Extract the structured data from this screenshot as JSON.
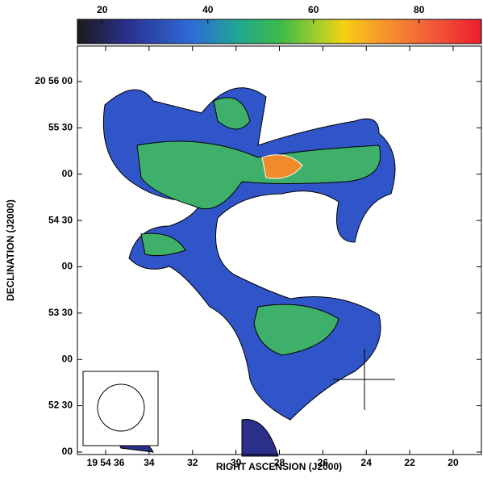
{
  "chart_data": {
    "type": "image",
    "x_label": "RIGHT ASCENSION (J2000)",
    "y_label": "DECLINATION (J2000)",
    "xlim": [
      37.3,
      18.7
    ],
    "xticks": [
      {
        "value": 36,
        "label": "19 54 36"
      },
      34,
      32,
      30,
      28,
      26,
      24,
      22,
      20
    ],
    "ylim": [
      -1.6,
      263
    ],
    "yticks": [
      {
        "value": 0,
        "label": "00"
      },
      {
        "value": 30,
        "label": "52 30"
      },
      {
        "value": 60,
        "label": "00"
      },
      {
        "value": 90,
        "label": "53 30"
      },
      {
        "value": 120,
        "label": "00"
      },
      {
        "value": 150,
        "label": "54 30"
      },
      {
        "value": 180,
        "label": "00"
      },
      {
        "value": 210,
        "label": "55 30"
      },
      {
        "value": 240,
        "label": "20 56 00"
      }
    ],
    "clim": [
      15.3,
      91.8
    ],
    "cticks": [
      20,
      40,
      60,
      80
    ]
  }
}
